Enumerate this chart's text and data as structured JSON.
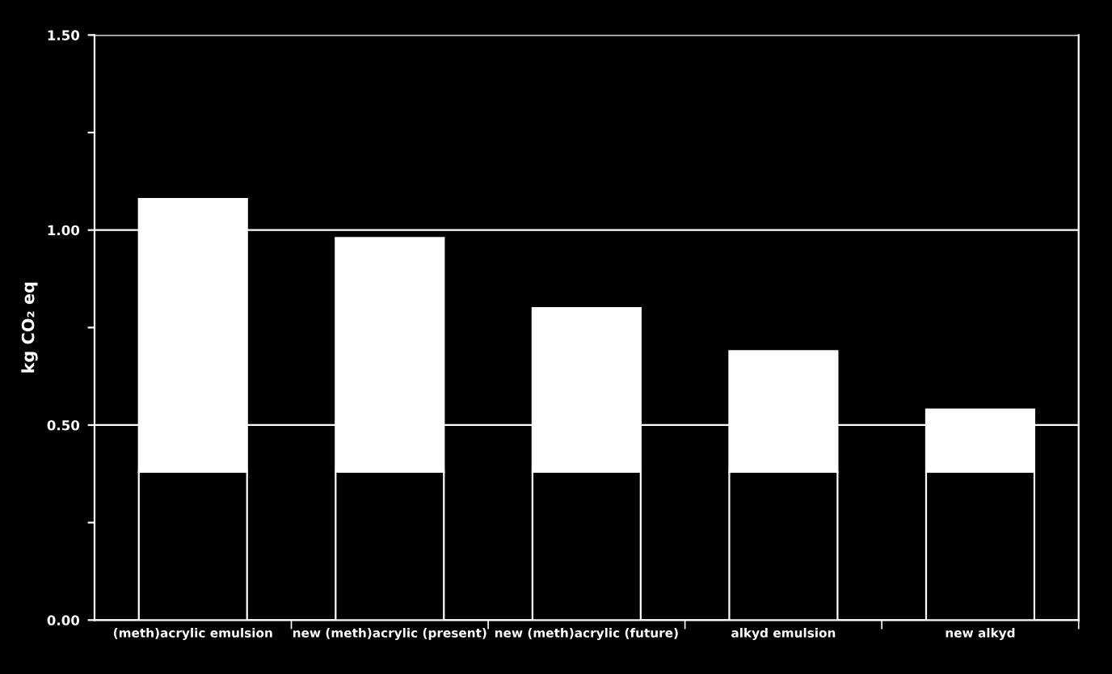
{
  "chart_data": {
    "type": "bar",
    "stacked": true,
    "ylabel": "kg CO₂ eq",
    "categories": [
      "(meth)acrylic emulsion",
      "new (meth)acrylic (present)",
      "new (meth)acrylic (future)",
      "alkyd emulsion",
      "new alkyd"
    ],
    "series": [
      {
        "color": "#000000",
        "values": [
          0.38,
          0.38,
          0.38,
          0.38,
          0.38
        ]
      },
      {
        "color": "#ffffff",
        "values": [
          0.7,
          0.6,
          0.42,
          0.31,
          0.16
        ]
      }
    ],
    "ylim": [
      0,
      1.5
    ],
    "yticks": [
      {
        "value": 0,
        "label": "0.00"
      },
      {
        "value": 0.25,
        "label": null
      },
      {
        "value": 0.5,
        "label": "0.50"
      },
      {
        "value": 0.75,
        "label": null
      },
      {
        "value": 1.0,
        "label": "1.00"
      },
      {
        "value": 1.25,
        "label": null
      },
      {
        "value": 1.5,
        "label": "1.50"
      }
    ],
    "grid": "y"
  }
}
